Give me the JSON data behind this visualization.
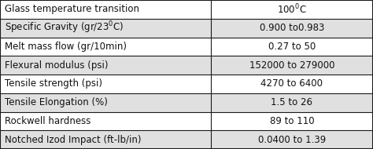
{
  "rows": [
    [
      "Glass temperature transition",
      "100$^0$C"
    ],
    [
      "Specific Gravity (gr/23$^0$C)",
      "0.900 to0.983"
    ],
    [
      "Melt mass flow (gr/10min)",
      "0.27 to 50"
    ],
    [
      "Flexural modulus (psi)",
      "152000 to 279000"
    ],
    [
      "Tensile strength (psi)",
      "4270 to 6400"
    ],
    [
      "Tensile Elongation (%)",
      "1.5 to 26"
    ],
    [
      "Rockwell hardness",
      "89 to 110"
    ],
    [
      "Notched Izod Impact (ft-lb/in)",
      "0.0400 to 1.39"
    ]
  ],
  "col_split": 0.565,
  "border_color": "#1a1a1a",
  "text_color": "#111111",
  "font_size": 8.5,
  "row_colors": [
    "#ffffff",
    "#e0e0e0"
  ],
  "fig_width": 4.74,
  "fig_height": 1.9,
  "dpi": 100
}
